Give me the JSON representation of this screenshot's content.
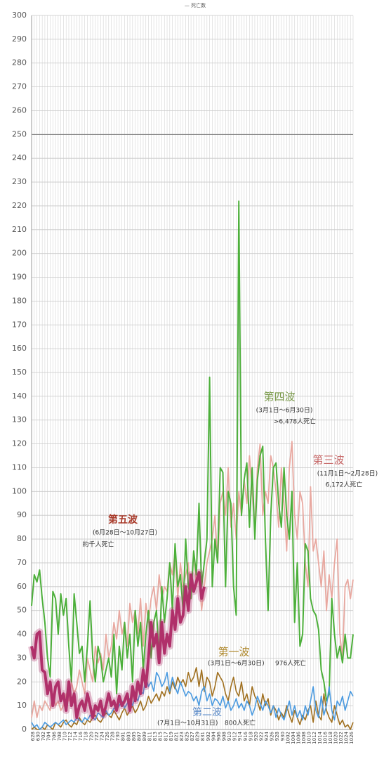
{
  "chart_data": {
    "type": "line",
    "title": "— 死亡数",
    "categories": [
      "628",
      null,
      "630",
      null,
      "702",
      null,
      "704",
      null,
      "706",
      null,
      "708",
      null,
      "710",
      null,
      "712",
      null,
      "714",
      null,
      "716",
      null,
      "718",
      null,
      "720",
      null,
      "722",
      null,
      "724",
      null,
      "726",
      null,
      "728",
      null,
      "730",
      null,
      "801",
      null,
      "803",
      null,
      "805",
      null,
      "807",
      null,
      "809",
      null,
      "811",
      null,
      "813",
      null,
      "815",
      null,
      "817",
      null,
      "819",
      null,
      "821",
      null,
      "823",
      null,
      "825",
      null,
      "827",
      null,
      "829",
      null,
      "831",
      null,
      "902",
      null,
      "904",
      null,
      "906",
      null,
      "908",
      null,
      "910",
      null,
      "912",
      null,
      "914",
      null,
      "916",
      null,
      "918",
      null,
      "920",
      null,
      "922",
      null,
      "924",
      null,
      "926",
      null,
      "928",
      null,
      "930",
      null,
      "1002",
      null,
      "1004",
      null,
      "1006",
      null,
      "1008",
      null,
      "1010",
      null,
      "1012",
      null,
      "1014",
      null,
      "1016",
      null,
      "1018",
      null,
      "1020",
      null,
      "1022",
      null,
      "1024",
      null,
      "1026",
      null
    ],
    "series": [
      {
        "name": "第三波",
        "period": "(11月1日～2月28日)",
        "deaths": "6,172人死亡",
        "color": "#e8a8a0",
        "values": [
          5,
          12,
          5,
          10,
          8,
          12,
          10,
          8,
          15,
          10,
          12,
          8,
          10,
          15,
          12,
          20,
          15,
          18,
          25,
          20,
          15,
          30,
          25,
          20,
          35,
          28,
          32,
          25,
          40,
          30,
          35,
          45,
          38,
          50,
          40,
          45,
          35,
          53,
          45,
          50,
          40,
          55,
          35,
          53,
          45,
          55,
          60,
          50,
          65,
          55,
          60,
          58,
          70,
          65,
          75,
          55,
          70,
          60,
          65,
          70,
          55,
          75,
          60,
          65,
          50,
          60,
          70,
          75,
          80,
          90,
          70,
          95,
          100,
          90,
          110,
          85,
          95,
          80,
          100,
          90,
          105,
          95,
          115,
          100,
          85,
          110,
          120,
          90,
          100,
          95,
          115,
          110,
          100,
          85,
          110,
          95,
          75,
          110,
          121,
          90,
          80,
          100,
          95,
          70,
          60,
          102,
          75,
          80,
          70,
          60,
          75,
          50,
          65,
          55,
          70,
          80,
          40,
          30,
          60,
          63,
          55,
          63
        ]
      },
      {
        "name": "第四波",
        "period": "(3月1日～6月30日)",
        "deaths": ">6,478人死亡",
        "color": "#4caf3a",
        "values": [
          52,
          65,
          62,
          67,
          55,
          45,
          30,
          22,
          58,
          55,
          40,
          57,
          48,
          55,
          35,
          20,
          57,
          45,
          32,
          35,
          20,
          35,
          54,
          30,
          20,
          35,
          30,
          20,
          25,
          30,
          22,
          40,
          15,
          35,
          25,
          45,
          30,
          40,
          20,
          50,
          35,
          45,
          25,
          40,
          50,
          30,
          45,
          50,
          30,
          60,
          45,
          55,
          70,
          50,
          78,
          60,
          65,
          50,
          80,
          60,
          55,
          75,
          65,
          95,
          60,
          70,
          80,
          148,
          60,
          80,
          70,
          110,
          108,
          60,
          100,
          95,
          60,
          48,
          222,
          90,
          105,
          112,
          85,
          110,
          80,
          105,
          115,
          119,
          80,
          50,
          90,
          110,
          112,
          95,
          85,
          110,
          90,
          80,
          100,
          45,
          70,
          35,
          40,
          78,
          75,
          55,
          50,
          48,
          42,
          25,
          20,
          12,
          15,
          55,
          40,
          30,
          35,
          28,
          40,
          30,
          30,
          40
        ]
      },
      {
        "name": "第一波",
        "period": "(3月1日～6月30日)",
        "deaths": "976人死亡",
        "color": "#a07020",
        "values": [
          0,
          1,
          0,
          0,
          1,
          0,
          2,
          1,
          0,
          3,
          2,
          1,
          3,
          4,
          2,
          1,
          3,
          2,
          5,
          3,
          2,
          4,
          3,
          5,
          6,
          4,
          3,
          5,
          7,
          6,
          5,
          8,
          6,
          4,
          7,
          9,
          6,
          8,
          10,
          7,
          9,
          12,
          8,
          10,
          14,
          11,
          13,
          15,
          12,
          16,
          14,
          18,
          15,
          20,
          17,
          22,
          19,
          21,
          18,
          24,
          20,
          22,
          26,
          18,
          25,
          16,
          22,
          20,
          14,
          18,
          24,
          22,
          20,
          15,
          12,
          18,
          22,
          16,
          14,
          20,
          12,
          15,
          10,
          18,
          14,
          12,
          8,
          15,
          10,
          13,
          6,
          10,
          8,
          4,
          7,
          5,
          10,
          6,
          3,
          8,
          5,
          2,
          6,
          4,
          8,
          10,
          3,
          12,
          6,
          4,
          15,
          8,
          5,
          3,
          10,
          6,
          2,
          4,
          1,
          2,
          0,
          3
        ]
      },
      {
        "name": "第二波",
        "period": "(7月1日～10月31日)",
        "deaths": "800人死亡",
        "color": "#4a9ae0",
        "values": [
          3,
          1,
          2,
          0,
          1,
          3,
          2,
          1,
          2,
          3,
          2,
          3,
          4,
          2,
          3,
          4,
          3,
          5,
          4,
          3,
          5,
          4,
          6,
          5,
          4,
          7,
          6,
          5,
          8,
          6,
          7,
          9,
          8,
          10,
          12,
          9,
          11,
          13,
          10,
          14,
          12,
          16,
          15,
          22,
          18,
          20,
          16,
          24,
          22,
          18,
          20,
          24,
          16,
          22,
          18,
          15,
          20,
          17,
          14,
          16,
          15,
          12,
          14,
          10,
          16,
          18,
          12,
          15,
          10,
          13,
          12,
          10,
          14,
          9,
          12,
          8,
          10,
          13,
          9,
          11,
          8,
          12,
          10,
          6,
          9,
          14,
          11,
          8,
          12,
          10,
          7,
          10,
          5,
          9,
          6,
          4,
          8,
          12,
          6,
          10,
          5,
          8,
          4,
          10,
          6,
          12,
          18,
          8,
          5,
          14,
          6,
          10,
          18,
          8,
          4,
          12,
          10,
          14,
          8,
          12,
          16,
          14
        ]
      },
      {
        "name": "第五波",
        "period": "(6月28日～10月27日)",
        "deaths": "約千人死亡",
        "color": "#b0306a",
        "values": [
          35,
          30,
          40,
          41,
          25,
          24,
          15,
          20,
          10,
          18,
          20,
          12,
          15,
          8,
          20,
          10,
          15,
          5,
          10,
          12,
          8,
          15,
          10,
          5,
          10,
          8,
          12,
          6,
          10,
          15,
          10,
          12,
          8,
          14,
          10,
          12,
          15,
          8,
          18,
          12,
          20,
          15,
          25,
          18,
          30,
          45,
          35,
          40,
          28,
          45,
          32,
          40,
          35,
          50,
          42,
          55,
          45,
          48,
          60,
          50,
          65,
          58,
          62,
          66,
          55,
          60,
          null,
          null,
          null,
          null,
          null,
          null,
          null,
          null,
          null,
          null,
          null,
          null,
          null,
          null,
          null,
          null,
          null,
          null,
          null,
          null,
          null,
          null,
          null,
          null,
          null,
          null,
          null,
          null,
          null,
          null,
          null,
          null,
          null,
          null,
          null,
          null,
          null,
          null,
          null,
          null,
          null,
          null,
          null,
          null,
          null,
          null,
          null,
          null,
          null,
          null,
          null,
          null,
          null,
          null,
          null,
          null
        ]
      }
    ],
    "ylim": [
      0,
      300
    ],
    "yticks": [
      0,
      10,
      20,
      30,
      40,
      50,
      60,
      70,
      80,
      90,
      100,
      110,
      120,
      130,
      140,
      150,
      160,
      170,
      180,
      190,
      200,
      210,
      220,
      230,
      240,
      250,
      260,
      270,
      280,
      290,
      300
    ],
    "ref_line": 250,
    "grid": true
  }
}
